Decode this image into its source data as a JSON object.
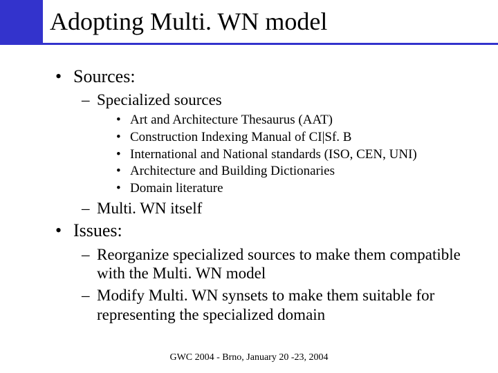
{
  "colors": {
    "accent": "#3333cc",
    "text": "#000000",
    "background": "#ffffff"
  },
  "title": "Adopting Multi. WN model",
  "bullets": {
    "sources_label": "Sources:",
    "specialized_label": "Specialized sources",
    "spec_items": [
      "Art and Architecture Thesaurus (AAT)",
      "Construction Indexing Manual of CI|Sf. B",
      "International and National standards (ISO, CEN, UNI)",
      "Architecture and Building Dictionaries",
      "Domain literature"
    ],
    "multiwn_label": "Multi. WN itself",
    "issues_label": "Issues:",
    "issues_items": [
      "Reorganize specialized sources to make them compatible with the Multi. WN model",
      "Modify Multi. WN synsets to make them suitable for representing the specialized domain"
    ]
  },
  "footer": "GWC 2004 - Brno, January 20 -23,  2004"
}
